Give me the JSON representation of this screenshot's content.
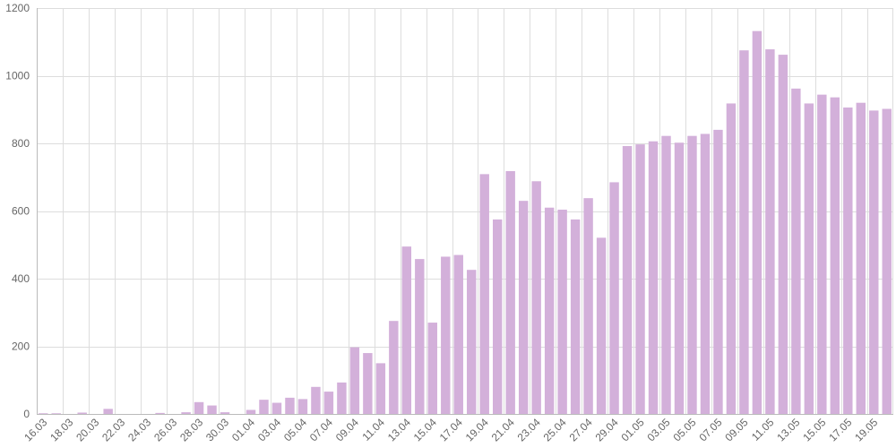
{
  "chart_data": {
    "type": "bar",
    "categories": [
      "16.03",
      "17.03",
      "18.03",
      "19.03",
      "20.03",
      "21.03",
      "22.03",
      "23.03",
      "24.03",
      "25.03",
      "26.03",
      "27.03",
      "28.03",
      "29.03",
      "30.03",
      "31.03",
      "01.04",
      "02.04",
      "03.04",
      "04.04",
      "05.04",
      "06.04",
      "07.04",
      "08.04",
      "09.04",
      "10.04",
      "11.04",
      "12.04",
      "13.04",
      "14.04",
      "15.04",
      "16.04",
      "17.04",
      "18.04",
      "19.04",
      "20.04",
      "21.04",
      "22.04",
      "23.04",
      "24.04",
      "25.04",
      "26.04",
      "27.04",
      "28.04",
      "29.04",
      "30.04",
      "01.05",
      "02.05",
      "03.05",
      "04.05",
      "05.05",
      "06.05",
      "07.05",
      "08.05",
      "09.05",
      "10.05",
      "11.05",
      "12.05",
      "13.05",
      "14.05",
      "15.05",
      "16.05",
      "17.05",
      "18.05",
      "19.05",
      "20.05"
    ],
    "tick_labels": [
      "16.03",
      "18.03",
      "20.03",
      "22.03",
      "24.03",
      "26.03",
      "28.03",
      "30.03",
      "01.04",
      "03.04",
      "05.04",
      "07.04",
      "09.04",
      "11.04",
      "13.04",
      "15.04",
      "17.04",
      "19.04",
      "21.04",
      "23.04",
      "25.04",
      "27.04",
      "29.04",
      "01.05",
      "03.05",
      "05.05",
      "07.05",
      "09.05",
      "11.05",
      "13.05",
      "15.05",
      "17.05",
      "19.05"
    ],
    "values": [
      2,
      2,
      0,
      4,
      0,
      15,
      0,
      0,
      0,
      3,
      0,
      5,
      35,
      25,
      5,
      0,
      12,
      42,
      33,
      48,
      44,
      80,
      66,
      93,
      197,
      180,
      150,
      275,
      495,
      458,
      270,
      465,
      470,
      426,
      709,
      575,
      718,
      630,
      688,
      610,
      604,
      575,
      638,
      521,
      685,
      792,
      797,
      806,
      822,
      802,
      822,
      828,
      840,
      918,
      1075,
      1132,
      1078,
      1062,
      962,
      918,
      944,
      936,
      906,
      920,
      897,
      902
    ],
    "ylim": [
      0,
      1200
    ],
    "yticks": [
      0,
      200,
      400,
      600,
      800,
      1000,
      1200
    ],
    "grid": true,
    "legend": "none",
    "colors": {
      "bar": "#d3b0da",
      "grid": "#dddddd",
      "text": "#666666"
    }
  }
}
